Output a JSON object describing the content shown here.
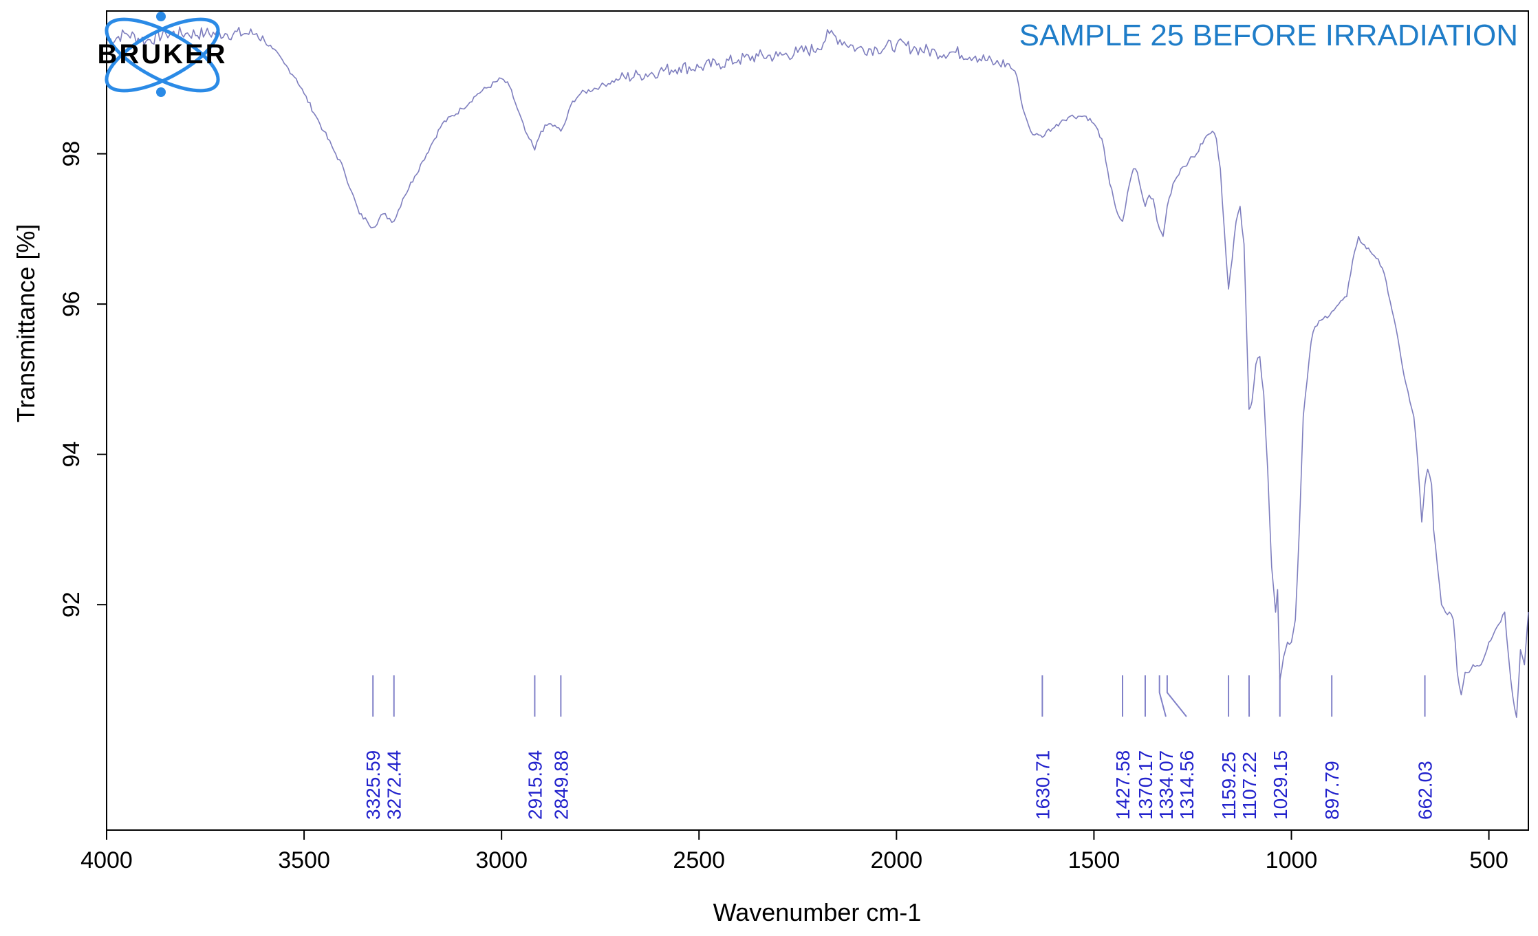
{
  "chart_data": {
    "type": "line",
    "title": "SAMPLE 25 BEFORE IRRADIATION",
    "xlabel": "Wavenumber cm-1",
    "ylabel": "Transmittance [%]",
    "xlim": [
      4000,
      400
    ],
    "ylim": [
      89.0,
      99.9
    ],
    "x_ticks": [
      4000,
      3500,
      3000,
      2500,
      2000,
      1500,
      1000,
      500
    ],
    "y_ticks": [
      92,
      94,
      96,
      98
    ],
    "grid": false,
    "series": [
      {
        "x": [
          4000,
          3950,
          3900,
          3850,
          3800,
          3750,
          3700,
          3650,
          3620,
          3600,
          3580,
          3550,
          3520,
          3500,
          3470,
          3450,
          3420,
          3400,
          3380,
          3360,
          3340,
          3325.59,
          3300,
          3272.44,
          3250,
          3220,
          3200,
          3180,
          3150,
          3100,
          3060,
          3000,
          2980,
          2960,
          2940,
          2930,
          2915.94,
          2900,
          2880,
          2860,
          2849.88,
          2840,
          2820,
          2800,
          2750,
          2700,
          2650,
          2600,
          2550,
          2500,
          2450,
          2400,
          2350,
          2300,
          2250,
          2200,
          2170,
          2100,
          2050,
          2000,
          1950,
          1900,
          1850,
          1800,
          1750,
          1720,
          1700,
          1690,
          1680,
          1670,
          1660,
          1650,
          1640,
          1630.71,
          1620,
          1600,
          1580,
          1560,
          1540,
          1520,
          1500,
          1480,
          1470,
          1460,
          1450,
          1440,
          1427.58,
          1420,
          1410,
          1400,
          1390,
          1380,
          1370.17,
          1360,
          1350,
          1340,
          1334.07,
          1325,
          1314.56,
          1300,
          1280,
          1260,
          1240,
          1220,
          1200,
          1190,
          1180,
          1170,
          1159.25,
          1150,
          1140,
          1130,
          1120,
          1107.22,
          1100,
          1090,
          1080,
          1070,
          1060,
          1050,
          1040,
          1035,
          1029.15,
          1020,
          1010,
          1000,
          990,
          980,
          970,
          960,
          950,
          940,
          920,
          897.79,
          880,
          860,
          850,
          840,
          830,
          820,
          800,
          780,
          760,
          740,
          720,
          700,
          690,
          680,
          670,
          662.03,
          655,
          645,
          640,
          630,
          620,
          610,
          600,
          590,
          580,
          570,
          560,
          550,
          540,
          520,
          500,
          480,
          460,
          450,
          440,
          430,
          420,
          410,
          400
        ],
        "y": [
          99.5,
          99.6,
          99.5,
          99.6,
          99.6,
          99.6,
          99.6,
          99.6,
          99.6,
          99.5,
          99.4,
          99.2,
          99.0,
          98.8,
          98.5,
          98.3,
          98.0,
          97.8,
          97.5,
          97.2,
          97.1,
          97.02,
          97.2,
          97.1,
          97.4,
          97.7,
          97.9,
          98.1,
          98.4,
          98.6,
          98.8,
          99.0,
          98.9,
          98.6,
          98.3,
          98.2,
          98.05,
          98.3,
          98.4,
          98.35,
          98.3,
          98.4,
          98.7,
          98.8,
          98.9,
          99.0,
          99.05,
          99.1,
          99.15,
          99.15,
          99.2,
          99.25,
          99.3,
          99.3,
          99.35,
          99.4,
          99.6,
          99.4,
          99.4,
          99.45,
          99.4,
          99.35,
          99.35,
          99.3,
          99.2,
          99.2,
          99.1,
          98.9,
          98.6,
          98.45,
          98.3,
          98.25,
          98.25,
          98.22,
          98.3,
          98.35,
          98.45,
          98.5,
          98.5,
          98.5,
          98.4,
          98.2,
          97.9,
          97.6,
          97.4,
          97.2,
          97.1,
          97.3,
          97.6,
          97.8,
          97.75,
          97.5,
          97.3,
          97.45,
          97.4,
          97.1,
          97.0,
          96.9,
          97.3,
          97.6,
          97.8,
          97.9,
          98.0,
          98.2,
          98.3,
          98.2,
          97.8,
          97.0,
          96.2,
          96.6,
          97.1,
          97.3,
          96.8,
          94.6,
          94.7,
          95.2,
          95.3,
          94.8,
          93.8,
          92.5,
          91.9,
          92.2,
          91.0,
          91.3,
          91.5,
          91.5,
          91.8,
          93.0,
          94.5,
          95.0,
          95.5,
          95.7,
          95.8,
          95.9,
          96.0,
          96.1,
          96.4,
          96.7,
          96.9,
          96.8,
          96.7,
          96.6,
          96.3,
          95.8,
          95.2,
          94.7,
          94.5,
          93.9,
          93.1,
          93.6,
          93.8,
          93.6,
          93.0,
          92.5,
          92.0,
          91.9,
          91.9,
          91.8,
          91.1,
          90.8,
          91.1,
          91.1,
          91.2,
          91.2,
          91.5,
          91.7,
          91.9,
          91.3,
          90.8,
          90.5,
          91.4,
          91.2,
          91.9
        ]
      }
    ],
    "peaks": [
      "3325.59",
      "3272.44",
      "2915.94",
      "2849.88",
      "1630.71",
      "1427.58",
      "1370.17",
      "1334.07",
      "1314.56",
      "1159.25",
      "1107.22",
      "1029.15",
      "897.79",
      "662.03"
    ],
    "peak_wavenumbers": [
      3325.59,
      3272.44,
      2915.94,
      2849.88,
      1630.71,
      1427.58,
      1370.17,
      1334.07,
      1314.56,
      1159.25,
      1107.22,
      1029.15,
      897.79,
      662.03
    ]
  },
  "logo": {
    "text": "BRUKER"
  },
  "colors": {
    "spectrum": "#7e7ebe",
    "peak_lines": "#8080c8",
    "peak_labels": "#2222cc",
    "title": "#1f7dc8",
    "logo_orbits": "#2a8ae6"
  }
}
